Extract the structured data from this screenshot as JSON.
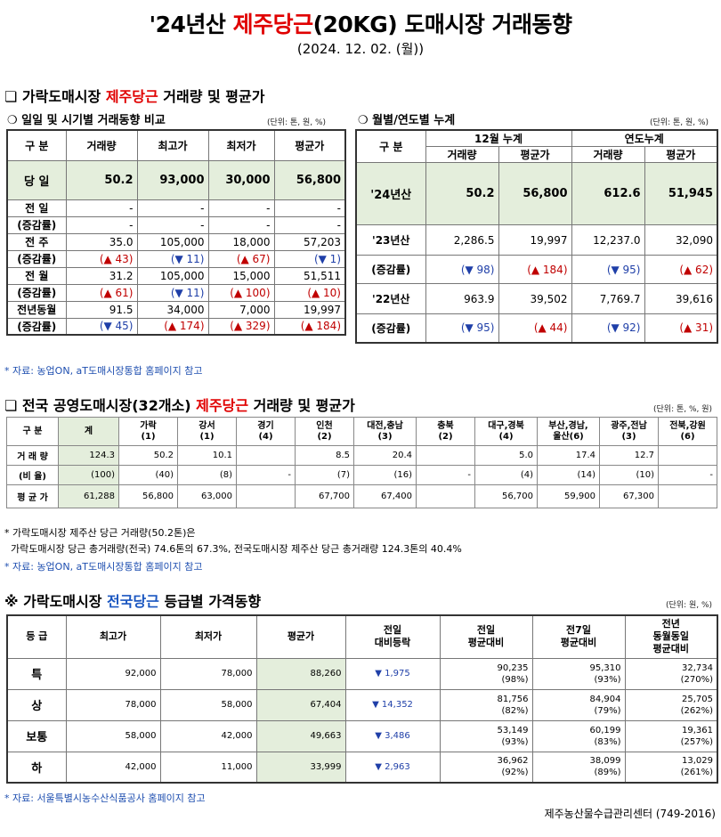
{
  "header": {
    "title_prefix": "'24년산 ",
    "title_red": "제주당근",
    "title_suffix": "(20KG) 도매시장 거래동향",
    "date": "(2024. 12. 02. (월))"
  },
  "sec1": {
    "title_a": "❏ 가락도매시장 ",
    "title_red": "제주당근",
    "title_b": " 거래량 및 평균가",
    "left": {
      "subtitle": "❍ 일일 및 시기별 거래동향 비교",
      "unit": "(단위: 톤, 원, %)",
      "headers": [
        "구  분",
        "거래량",
        "최고가",
        "최저가",
        "평균가"
      ],
      "today": {
        "label": "당  일",
        "vals": [
          "50.2",
          "93,000",
          "30,000",
          "56,800"
        ]
      },
      "rows": [
        {
          "l1": "전  일",
          "l2": "(증감률)",
          "v": [
            "-",
            "-",
            "-",
            "-"
          ],
          "c": [
            "-",
            "-",
            "-",
            "-"
          ],
          "cc": [
            "",
            "",
            "",
            ""
          ]
        },
        {
          "l1": "전  주",
          "l2": "(증감률)",
          "v": [
            "35.0",
            "105,000",
            "18,000",
            "57,203"
          ],
          "c": [
            "(▲ 43)",
            "(▼ 11)",
            "(▲ 67)",
            "(▼ 1)"
          ],
          "cc": [
            "up",
            "dn",
            "up",
            "dn"
          ]
        },
        {
          "l1": "전  월",
          "l2": "(증감률)",
          "v": [
            "31.2",
            "105,000",
            "15,000",
            "51,511"
          ],
          "c": [
            "(▲ 61)",
            "(▼ 11)",
            "(▲ 100)",
            "(▲ 10)"
          ],
          "cc": [
            "up",
            "dn",
            "up",
            "up"
          ]
        },
        {
          "l1": "전년동월",
          "l2": "(증감률)",
          "v": [
            "91.5",
            "34,000",
            "7,000",
            "19,997"
          ],
          "c": [
            "(▼ 45)",
            "(▲ 174)",
            "(▲ 329)",
            "(▲ 184)"
          ],
          "cc": [
            "dn",
            "up",
            "up",
            "up"
          ]
        }
      ]
    },
    "right": {
      "subtitle": "❍ 월별/연도별 누계",
      "unit": "(단위: 톤, 원, %)",
      "h1": [
        "구  분",
        "12월 누계",
        "연도누계"
      ],
      "h2": [
        "거래량",
        "평균가",
        "거래량",
        "평균가"
      ],
      "y24": {
        "label": "'24년산",
        "vals": [
          "50.2",
          "56,800",
          "612.6",
          "51,945"
        ]
      },
      "rows": [
        {
          "label": "'23년산",
          "v": [
            "2,286.5",
            "19,997",
            "12,237.0",
            "32,090"
          ],
          "c": [
            "(▼ 98)",
            "(▲ 184)",
            "(▼ 95)",
            "(▲ 62)"
          ],
          "cc": [
            "dn",
            "up",
            "dn",
            "up"
          ]
        },
        {
          "label": "'22년산",
          "v": [
            "963.9",
            "39,502",
            "7,769.7",
            "39,616"
          ],
          "c": [
            "(▼ 95)",
            "(▲ 44)",
            "(▼ 92)",
            "(▲ 31)"
          ],
          "cc": [
            "dn",
            "up",
            "dn",
            "up"
          ]
        }
      ],
      "sub_label": "(증감률)"
    },
    "source": "* 자료: 농업ON, aT도매시장통합 홈페이지 참고"
  },
  "sec2": {
    "title_a": "❏ 전국 공영도매시장(32개소) ",
    "title_red": "제주당근",
    "title_b": " 거래량 및 평균가",
    "unit": "(단위: 톤, %, 원)",
    "headers": [
      [
        "구  분",
        ""
      ],
      [
        "계",
        ""
      ],
      [
        "가락",
        "(1)"
      ],
      [
        "강서",
        "(1)"
      ],
      [
        "경기",
        "(4)"
      ],
      [
        "인천",
        "(2)"
      ],
      [
        "대전,충남",
        "(3)"
      ],
      [
        "충북",
        "(2)"
      ],
      [
        "대구,경북",
        "(4)"
      ],
      [
        "부산,경남,",
        "울산(6)"
      ],
      [
        "광주,전남",
        "(3)"
      ],
      [
        "전북,강원",
        "(6)"
      ]
    ],
    "row_vol_label": "거 래 량",
    "row_ratio_label": "(비 율)",
    "row_avg_label": "평 균 가",
    "vol": [
      "124.3",
      "50.2",
      "10.1",
      "",
      "8.5",
      "20.4",
      "",
      "5.0",
      "17.4",
      "12.7",
      ""
    ],
    "ratio": [
      "(100)",
      "(40)",
      "(8)",
      "-",
      "(7)",
      "(16)",
      "-",
      "(4)",
      "(14)",
      "(10)",
      "-"
    ],
    "avg": [
      "61,288",
      "56,800",
      "63,000",
      "",
      "67,700",
      "67,400",
      "",
      "56,700",
      "59,900",
      "67,300",
      ""
    ],
    "note1": "* 가락도매시장 제주산 당근 거래량(50.2톤)은",
    "note2": "  가락도매시장 당근 총거래량(전국) 74.6톤의 67.3%, 전국도매시장 제주산 당근 총거래량 124.3톤의 40.4%",
    "source": "* 자료: 농업ON, aT도매시장통합 홈페이지 참고"
  },
  "sec3": {
    "title_a": "※ 가락도매시장 ",
    "title_blue": "전국당근",
    "title_b": " 등급별 가격동향",
    "unit": "(단위: 원, %)",
    "headers": [
      "등  급",
      "최고가",
      "최저가",
      "평균가",
      "전일\n대비등락",
      "전일\n평균대비",
      "전7일\n평균대비",
      "전년\n동월동일\n평균대비"
    ],
    "rows": [
      {
        "g": "특",
        "max": "92,000",
        "min": "78,000",
        "avg": "88,260",
        "chg": "▼ 1,975",
        "p1": "90,235",
        "p1r": "(98%)",
        "p7": "95,310",
        "p7r": "(93%)",
        "py": "32,734",
        "pyr": "(270%)"
      },
      {
        "g": "상",
        "max": "78,000",
        "min": "58,000",
        "avg": "67,404",
        "chg": "▼ 14,352",
        "p1": "81,756",
        "p1r": "(82%)",
        "p7": "84,904",
        "p7r": "(79%)",
        "py": "25,705",
        "pyr": "(262%)"
      },
      {
        "g": "보통",
        "max": "58,000",
        "min": "42,000",
        "avg": "49,663",
        "chg": "▼ 3,486",
        "p1": "53,149",
        "p1r": "(93%)",
        "p7": "60,199",
        "p7r": "(83%)",
        "py": "19,361",
        "pyr": "(257%)"
      },
      {
        "g": "하",
        "max": "42,000",
        "min": "11,000",
        "avg": "33,999",
        "chg": "▼ 2,963",
        "p1": "36,962",
        "p1r": "(92%)",
        "p7": "38,099",
        "p7r": "(89%)",
        "py": "13,029",
        "pyr": "(261%)"
      }
    ],
    "source": "* 자료: 서울특별시농수산식품공사 홈페이지 참고"
  },
  "footer": "제주농산물수급관리센터 (749-2016)"
}
